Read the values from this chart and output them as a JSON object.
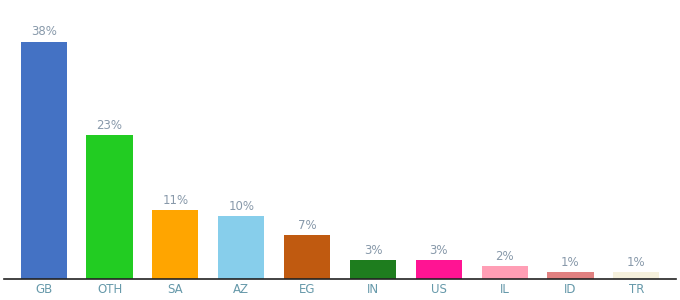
{
  "categories": [
    "GB",
    "OTH",
    "SA",
    "AZ",
    "EG",
    "IN",
    "US",
    "IL",
    "ID",
    "TR"
  ],
  "values": [
    38,
    23,
    11,
    10,
    7,
    3,
    3,
    2,
    1,
    1
  ],
  "bar_colors": [
    "#4472C4",
    "#22CC22",
    "#FFA500",
    "#87CEEB",
    "#C05A10",
    "#1E7D1E",
    "#FF1493",
    "#FF9EB5",
    "#E08080",
    "#F5F0DC"
  ],
  "label_color": "#8899AA",
  "tick_color": "#6699AA",
  "ylim": [
    0,
    44
  ],
  "bar_width": 0.7,
  "label_fontsize": 8.5,
  "tick_fontsize": 8.5,
  "background_color": "#ffffff"
}
